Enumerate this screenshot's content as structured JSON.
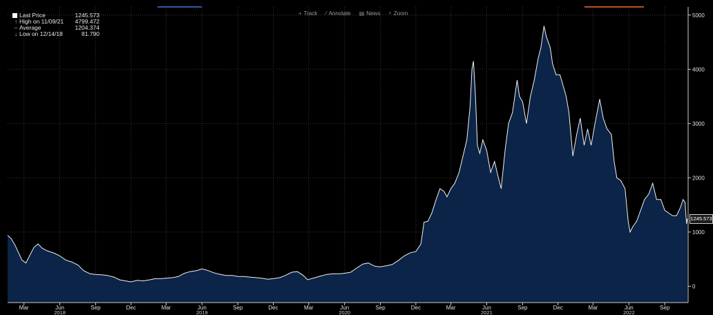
{
  "legend": {
    "last_price_label": "Last Price",
    "last_price_value": "1245.573",
    "high_label": "High on 11/09/21",
    "high_value": "4799.472",
    "average_label": "Average",
    "average_value": "1204.374",
    "low_label": "Low on 12/14/18",
    "low_value": "81.790"
  },
  "toolbar": {
    "track": "Track",
    "annotate": "Annotate",
    "news": "News",
    "zoom": "Zoom"
  },
  "price_tag": "1245.573",
  "colors": {
    "background": "#000000",
    "area_fill": "#0c2447",
    "line": "#f2f2f2",
    "grid": "#3a3a3a"
  },
  "chart_data": {
    "type": "area",
    "x_unit": "month",
    "ylim": [
      -300,
      5150
    ],
    "yticks": [
      0,
      1000,
      2000,
      3000,
      4000,
      5000
    ],
    "grid": true,
    "x_tick_labels": [
      {
        "x": "2018-03",
        "label": "Mar"
      },
      {
        "x": "2018-06",
        "label": "Jun"
      },
      {
        "x": "2018-09",
        "label": "Sep"
      },
      {
        "x": "2018-12",
        "label": "Dec"
      },
      {
        "x": "2019-03",
        "label": "Mar"
      },
      {
        "x": "2019-06",
        "label": "Jun"
      },
      {
        "x": "2019-09",
        "label": "Sep"
      },
      {
        "x": "2019-12",
        "label": "Dec"
      },
      {
        "x": "2020-03",
        "label": "Mar"
      },
      {
        "x": "2020-06",
        "label": "Jun"
      },
      {
        "x": "2020-09",
        "label": "Sep"
      },
      {
        "x": "2020-12",
        "label": "Dec"
      },
      {
        "x": "2021-03",
        "label": "Mar"
      },
      {
        "x": "2021-06",
        "label": "Jun"
      },
      {
        "x": "2021-09",
        "label": "Sep"
      },
      {
        "x": "2021-12",
        "label": "Dec"
      },
      {
        "x": "2022-03",
        "label": "Mar"
      },
      {
        "x": "2022-06",
        "label": "Jun"
      },
      {
        "x": "2022-09",
        "label": "Sep"
      }
    ],
    "year_labels": [
      {
        "x": "2018-06",
        "label": "2018"
      },
      {
        "x": "2019-06",
        "label": "2019"
      },
      {
        "x": "2020-06",
        "label": "2020"
      },
      {
        "x": "2021-06",
        "label": "2021"
      },
      {
        "x": "2022-06",
        "label": "2022"
      }
    ],
    "series": [
      {
        "points": [
          [
            "2018-02-01",
            940
          ],
          [
            "2018-02-10",
            880
          ],
          [
            "2018-02-20",
            760
          ],
          [
            "2018-03-01",
            620
          ],
          [
            "2018-03-10",
            480
          ],
          [
            "2018-03-20",
            430
          ],
          [
            "2018-04-01",
            600
          ],
          [
            "2018-04-10",
            720
          ],
          [
            "2018-04-20",
            780
          ],
          [
            "2018-05-01",
            700
          ],
          [
            "2018-05-15",
            650
          ],
          [
            "2018-06-01",
            610
          ],
          [
            "2018-06-15",
            560
          ],
          [
            "2018-07-01",
            480
          ],
          [
            "2018-07-15",
            450
          ],
          [
            "2018-08-01",
            390
          ],
          [
            "2018-08-15",
            290
          ],
          [
            "2018-09-01",
            230
          ],
          [
            "2018-09-15",
            220
          ],
          [
            "2018-10-01",
            210
          ],
          [
            "2018-10-15",
            200
          ],
          [
            "2018-11-01",
            170
          ],
          [
            "2018-11-15",
            120
          ],
          [
            "2018-12-01",
            100
          ],
          [
            "2018-12-14",
            82
          ],
          [
            "2019-01-01",
            110
          ],
          [
            "2019-01-15",
            100
          ],
          [
            "2019-02-01",
            120
          ],
          [
            "2019-02-15",
            140
          ],
          [
            "2019-03-01",
            140
          ],
          [
            "2019-03-15",
            150
          ],
          [
            "2019-04-01",
            160
          ],
          [
            "2019-04-15",
            180
          ],
          [
            "2019-05-01",
            240
          ],
          [
            "2019-05-15",
            270
          ],
          [
            "2019-06-01",
            290
          ],
          [
            "2019-06-15",
            320
          ],
          [
            "2019-07-01",
            290
          ],
          [
            "2019-07-15",
            250
          ],
          [
            "2019-08-01",
            220
          ],
          [
            "2019-08-15",
            200
          ],
          [
            "2019-09-01",
            200
          ],
          [
            "2019-09-15",
            180
          ],
          [
            "2019-10-01",
            180
          ],
          [
            "2019-10-15",
            170
          ],
          [
            "2019-11-01",
            160
          ],
          [
            "2019-11-15",
            150
          ],
          [
            "2019-12-01",
            130
          ],
          [
            "2019-12-15",
            140
          ],
          [
            "2020-01-01",
            160
          ],
          [
            "2020-01-15",
            200
          ],
          [
            "2020-02-01",
            260
          ],
          [
            "2020-02-15",
            270
          ],
          [
            "2020-03-01",
            200
          ],
          [
            "2020-03-12",
            120
          ],
          [
            "2020-04-01",
            160
          ],
          [
            "2020-04-15",
            190
          ],
          [
            "2020-05-01",
            220
          ],
          [
            "2020-05-15",
            230
          ],
          [
            "2020-06-01",
            230
          ],
          [
            "2020-06-15",
            240
          ],
          [
            "2020-07-01",
            260
          ],
          [
            "2020-07-15",
            330
          ],
          [
            "2020-08-01",
            410
          ],
          [
            "2020-08-15",
            430
          ],
          [
            "2020-09-01",
            370
          ],
          [
            "2020-09-15",
            360
          ],
          [
            "2020-10-01",
            380
          ],
          [
            "2020-10-15",
            400
          ],
          [
            "2020-11-01",
            480
          ],
          [
            "2020-11-15",
            560
          ],
          [
            "2020-12-01",
            620
          ],
          [
            "2020-12-15",
            640
          ],
          [
            "2020-12-28",
            780
          ],
          [
            "2021-01-05",
            1180
          ],
          [
            "2021-01-15",
            1200
          ],
          [
            "2021-01-25",
            1350
          ],
          [
            "2021-02-05",
            1600
          ],
          [
            "2021-02-15",
            1800
          ],
          [
            "2021-02-25",
            1750
          ],
          [
            "2021-03-05",
            1650
          ],
          [
            "2021-03-15",
            1800
          ],
          [
            "2021-03-25",
            1900
          ],
          [
            "2021-04-05",
            2100
          ],
          [
            "2021-04-15",
            2400
          ],
          [
            "2021-04-25",
            2700
          ],
          [
            "2021-05-03",
            3300
          ],
          [
            "2021-05-08",
            4000
          ],
          [
            "2021-05-12",
            4150
          ],
          [
            "2021-05-17",
            3500
          ],
          [
            "2021-05-22",
            2600
          ],
          [
            "2021-05-28",
            2450
          ],
          [
            "2021-06-05",
            2700
          ],
          [
            "2021-06-15",
            2500
          ],
          [
            "2021-06-25",
            2100
          ],
          [
            "2021-07-05",
            2300
          ],
          [
            "2021-07-15",
            2000
          ],
          [
            "2021-07-22",
            1800
          ],
          [
            "2021-08-01",
            2500
          ],
          [
            "2021-08-10",
            3000
          ],
          [
            "2021-08-20",
            3200
          ],
          [
            "2021-09-01",
            3800
          ],
          [
            "2021-09-07",
            3500
          ],
          [
            "2021-09-15",
            3400
          ],
          [
            "2021-09-25",
            3000
          ],
          [
            "2021-10-05",
            3500
          ],
          [
            "2021-10-15",
            3800
          ],
          [
            "2021-10-25",
            4200
          ],
          [
            "2021-11-01",
            4400
          ],
          [
            "2021-11-09",
            4799
          ],
          [
            "2021-11-15",
            4600
          ],
          [
            "2021-11-25",
            4400
          ],
          [
            "2021-12-01",
            4100
          ],
          [
            "2021-12-10",
            3900
          ],
          [
            "2021-12-20",
            3900
          ],
          [
            "2021-12-28",
            3700
          ],
          [
            "2022-01-05",
            3500
          ],
          [
            "2022-01-12",
            3200
          ],
          [
            "2022-01-22",
            2400
          ],
          [
            "2022-02-01",
            2800
          ],
          [
            "2022-02-10",
            3100
          ],
          [
            "2022-02-20",
            2600
          ],
          [
            "2022-03-01",
            2900
          ],
          [
            "2022-03-10",
            2600
          ],
          [
            "2022-03-20",
            3000
          ],
          [
            "2022-04-01",
            3450
          ],
          [
            "2022-04-10",
            3100
          ],
          [
            "2022-04-20",
            2900
          ],
          [
            "2022-05-01",
            2800
          ],
          [
            "2022-05-08",
            2300
          ],
          [
            "2022-05-15",
            2000
          ],
          [
            "2022-05-25",
            1950
          ],
          [
            "2022-06-05",
            1800
          ],
          [
            "2022-06-13",
            1200
          ],
          [
            "2022-06-18",
            1000
          ],
          [
            "2022-06-25",
            1100
          ],
          [
            "2022-07-05",
            1200
          ],
          [
            "2022-07-15",
            1400
          ],
          [
            "2022-07-25",
            1600
          ],
          [
            "2022-08-05",
            1700
          ],
          [
            "2022-08-15",
            1900
          ],
          [
            "2022-08-25",
            1600
          ],
          [
            "2022-09-05",
            1600
          ],
          [
            "2022-09-15",
            1400
          ],
          [
            "2022-09-25",
            1350
          ],
          [
            "2022-10-05",
            1300
          ],
          [
            "2022-10-15",
            1300
          ],
          [
            "2022-10-25",
            1450
          ],
          [
            "2022-11-01",
            1600
          ],
          [
            "2022-11-06",
            1550
          ],
          [
            "2022-11-10",
            1150
          ],
          [
            "2022-11-12",
            1245
          ]
        ]
      }
    ]
  }
}
